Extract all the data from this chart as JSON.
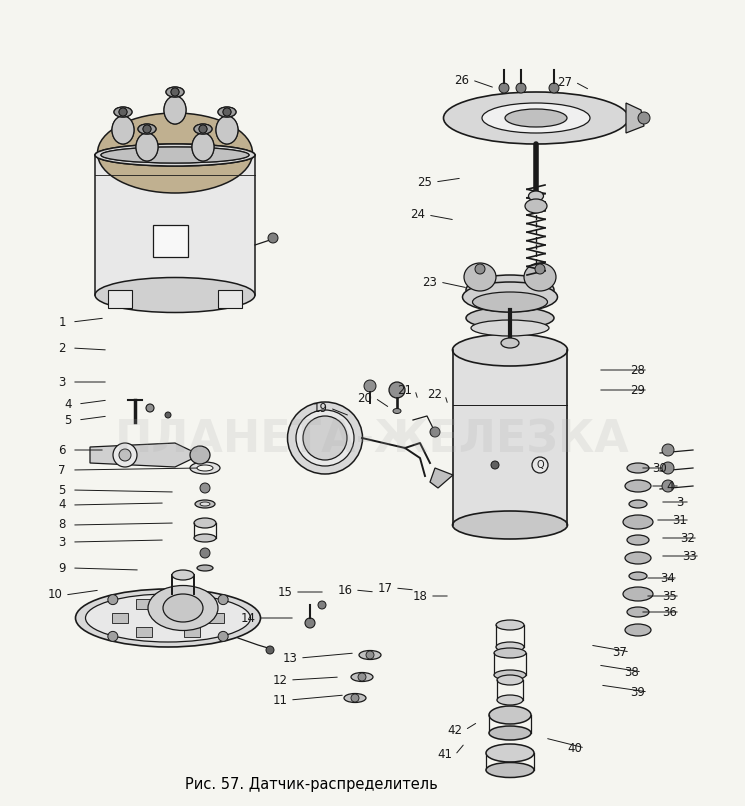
{
  "title": "Рис. 57. Датчик-распределитель",
  "bg_color": "#f5f5f0",
  "fig_width": 7.45,
  "fig_height": 8.06,
  "dpi": 100,
  "watermark_text": "ПЛАНЕТА-ЖЕЛЕЗКА",
  "watermark_alpha": 0.18,
  "watermark_fontsize": 32,
  "labels": [
    [
      "1",
      62,
      322,
      105,
      318
    ],
    [
      "2",
      62,
      348,
      108,
      350
    ],
    [
      "3",
      62,
      382,
      108,
      382
    ],
    [
      "4",
      68,
      404,
      108,
      400
    ],
    [
      "5",
      68,
      420,
      108,
      416
    ],
    [
      "6",
      62,
      450,
      105,
      450
    ],
    [
      "7",
      62,
      470,
      200,
      468
    ],
    [
      "5",
      62,
      490,
      175,
      492
    ],
    [
      "4",
      62,
      505,
      165,
      503
    ],
    [
      "8",
      62,
      525,
      175,
      523
    ],
    [
      "3",
      62,
      542,
      165,
      540
    ],
    [
      "9",
      62,
      568,
      140,
      570
    ],
    [
      "10",
      55,
      595,
      100,
      590
    ],
    [
      "11",
      280,
      700,
      345,
      695
    ],
    [
      "12",
      280,
      680,
      340,
      677
    ],
    [
      "13",
      290,
      658,
      355,
      653
    ],
    [
      "14",
      248,
      618,
      295,
      618
    ],
    [
      "15",
      285,
      592,
      325,
      592
    ],
    [
      "16",
      345,
      590,
      375,
      592
    ],
    [
      "17",
      385,
      588,
      415,
      590
    ],
    [
      "18",
      420,
      596,
      450,
      596
    ],
    [
      "19",
      320,
      408,
      350,
      416
    ],
    [
      "20",
      365,
      398,
      390,
      408
    ],
    [
      "21",
      405,
      390,
      418,
      400
    ],
    [
      "22",
      435,
      395,
      448,
      405
    ],
    [
      "23",
      430,
      282,
      468,
      288
    ],
    [
      "24",
      418,
      215,
      455,
      220
    ],
    [
      "25",
      425,
      182,
      462,
      178
    ],
    [
      "26",
      462,
      80,
      495,
      88
    ],
    [
      "27",
      565,
      82,
      590,
      90
    ],
    [
      "28",
      638,
      370,
      598,
      370
    ],
    [
      "29",
      638,
      390,
      598,
      390
    ],
    [
      "30",
      660,
      468,
      640,
      468
    ],
    [
      "4",
      670,
      486,
      650,
      486
    ],
    [
      "3",
      680,
      502,
      660,
      502
    ],
    [
      "31",
      680,
      520,
      655,
      520
    ],
    [
      "32",
      688,
      538,
      660,
      538
    ],
    [
      "33",
      690,
      556,
      660,
      556
    ],
    [
      "34",
      668,
      578,
      645,
      578
    ],
    [
      "35",
      670,
      596,
      645,
      596
    ],
    [
      "36",
      670,
      612,
      640,
      612
    ],
    [
      "37",
      620,
      652,
      590,
      645
    ],
    [
      "38",
      632,
      672,
      598,
      665
    ],
    [
      "39",
      638,
      692,
      600,
      685
    ],
    [
      "40",
      575,
      748,
      545,
      738
    ],
    [
      "41",
      445,
      755,
      465,
      743
    ],
    [
      "42",
      455,
      730,
      478,
      722
    ]
  ]
}
